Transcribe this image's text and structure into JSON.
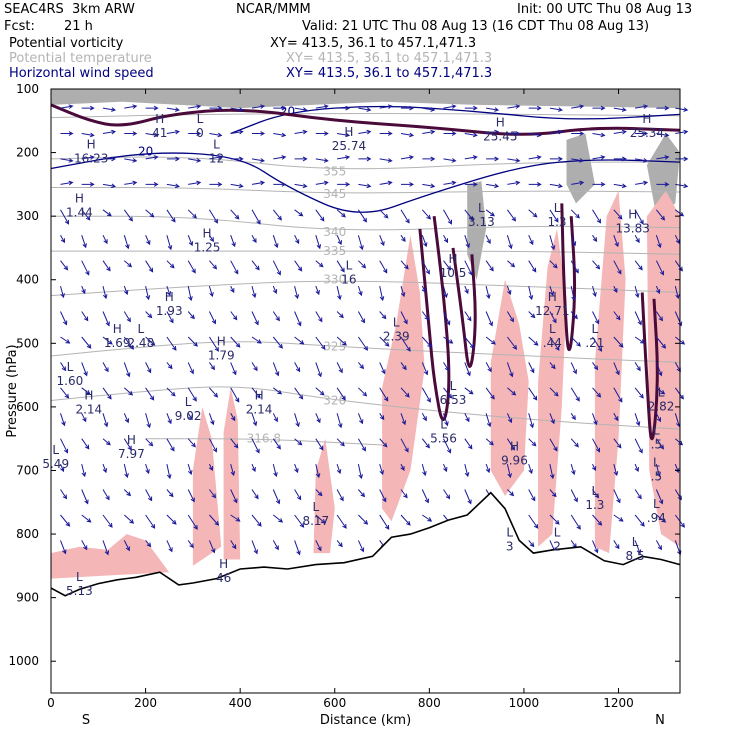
{
  "header": {
    "model": "SEAC4RS  3km ARW",
    "center": "NCAR/MMM",
    "init": "Init: 00 UTC Thu 08 Aug 13",
    "fcst_label": "Fcst:",
    "fcst_value": "21 h",
    "valid": "Valid: 21 UTC Thu 08 Aug 13 (16 CDT Thu 08 Aug 13)"
  },
  "fields": [
    {
      "name": "Potential vorticity",
      "xy": "XY= 413.5, 36.1 to 457.1,471.3",
      "color": "#000000"
    },
    {
      "name": "Potential temperature",
      "xy": "XY= 413.5, 36.1 to 457.1,471.3",
      "color": "#b4b4b4"
    },
    {
      "name": "Horizontal wind speed",
      "xy": "XY= 413.5, 36.1 to 457.1,471.3",
      "color": "#000080"
    }
  ],
  "chart_data": {
    "type": "cross-section",
    "xlabel": "Distance (km)",
    "ylabel": "Pressure (hPa)",
    "xlim": [
      0,
      1330
    ],
    "ylim": [
      1050,
      100
    ],
    "xticks": [
      0,
      200,
      400,
      600,
      800,
      1000,
      1200
    ],
    "yticks": [
      100,
      200,
      300,
      400,
      500,
      600,
      700,
      800,
      900,
      1000
    ],
    "left_end": "S",
    "right_end": "N",
    "terrain_pressure": [
      [
        0,
        885
      ],
      [
        30,
        897
      ],
      [
        60,
        887
      ],
      [
        100,
        878
      ],
      [
        140,
        872
      ],
      [
        180,
        868
      ],
      [
        230,
        860
      ],
      [
        270,
        880
      ],
      [
        300,
        877
      ],
      [
        350,
        870
      ],
      [
        400,
        855
      ],
      [
        450,
        852
      ],
      [
        500,
        855
      ],
      [
        560,
        848
      ],
      [
        620,
        845
      ],
      [
        680,
        835
      ],
      [
        720,
        805
      ],
      [
        760,
        800
      ],
      [
        800,
        790
      ],
      [
        840,
        778
      ],
      [
        880,
        770
      ],
      [
        930,
        735
      ],
      [
        960,
        760
      ],
      [
        990,
        810
      ],
      [
        1020,
        830
      ],
      [
        1060,
        825
      ],
      [
        1120,
        820
      ],
      [
        1170,
        842
      ],
      [
        1210,
        848
      ],
      [
        1250,
        835
      ],
      [
        1290,
        840
      ],
      [
        1330,
        848
      ]
    ],
    "theta_contours": [
      {
        "label": "",
        "p": [
          [
            0,
            145
          ],
          [
            300,
            140
          ],
          [
            700,
            138
          ],
          [
            1000,
            140
          ],
          [
            1330,
            142
          ]
        ]
      },
      {
        "label": "355",
        "p": [
          [
            0,
            210
          ],
          [
            300,
            205
          ],
          [
            600,
            230
          ],
          [
            1000,
            215
          ],
          [
            1330,
            215
          ]
        ]
      },
      {
        "label": "345",
        "p": [
          [
            0,
            255
          ],
          [
            300,
            255
          ],
          [
            600,
            265
          ],
          [
            1000,
            260
          ],
          [
            1330,
            262
          ]
        ]
      },
      {
        "label": "340",
        "p": [
          [
            0,
            300
          ],
          [
            300,
            300
          ],
          [
            600,
            325
          ],
          [
            1000,
            315
          ],
          [
            1330,
            318
          ]
        ]
      },
      {
        "label": "335",
        "p": [
          [
            0,
            355
          ],
          [
            300,
            355
          ],
          [
            600,
            355
          ],
          [
            1000,
            355
          ],
          [
            1330,
            360
          ]
        ]
      },
      {
        "label": "330",
        "p": [
          [
            0,
            425
          ],
          [
            300,
            410
          ],
          [
            600,
            400
          ],
          [
            1000,
            410
          ],
          [
            1330,
            420
          ]
        ]
      },
      {
        "label": "325",
        "p": [
          [
            0,
            520
          ],
          [
            200,
            505
          ],
          [
            400,
            495
          ],
          [
            600,
            505
          ],
          [
            1000,
            520
          ],
          [
            1330,
            530
          ]
        ]
      },
      {
        "label": "320",
        "p": [
          [
            0,
            590
          ],
          [
            200,
            575
          ],
          [
            400,
            565
          ],
          [
            600,
            590
          ],
          [
            1000,
            620
          ],
          [
            1330,
            635
          ]
        ]
      },
      {
        "label": "316.8",
        "p": [
          [
            200,
            650
          ],
          [
            450,
            650
          ],
          [
            700,
            660
          ]
        ]
      }
    ],
    "wind_speed_contours": [
      {
        "label": "20",
        "p": [
          [
            0,
            225
          ],
          [
            200,
            198
          ],
          [
            400,
            205
          ],
          [
            500,
            255
          ],
          [
            650,
            305
          ],
          [
            800,
            265
          ],
          [
            1000,
            220
          ],
          [
            1150,
            210
          ],
          [
            1330,
            215
          ]
        ]
      },
      {
        "label": "20",
        "p": [
          [
            380,
            170
          ],
          [
            500,
            135
          ],
          [
            700,
            125
          ],
          [
            900,
            135
          ],
          [
            1100,
            150
          ],
          [
            1330,
            140
          ]
        ]
      }
    ],
    "pv_contours": [
      {
        "label": "",
        "p": [
          [
            0,
            125
          ],
          [
            80,
            150
          ],
          [
            150,
            160
          ],
          [
            250,
            140
          ],
          [
            400,
            130
          ],
          [
            600,
            150
          ],
          [
            800,
            160
          ],
          [
            1000,
            175
          ],
          [
            1150,
            160
          ],
          [
            1330,
            165
          ]
        ]
      },
      {
        "label": "",
        "p": [
          [
            780,
            320
          ],
          [
            800,
            480
          ],
          [
            810,
            560
          ],
          [
            830,
            640
          ],
          [
            845,
            560
          ],
          [
            830,
            420
          ],
          [
            810,
            300
          ]
        ]
      },
      {
        "label": "",
        "p": [
          [
            850,
            350
          ],
          [
            870,
            460
          ],
          [
            885,
            560
          ],
          [
            900,
            470
          ],
          [
            890,
            360
          ]
        ]
      },
      {
        "label": "",
        "p": [
          [
            1080,
            280
          ],
          [
            1085,
            420
          ],
          [
            1095,
            540
          ],
          [
            1110,
            420
          ],
          [
            1100,
            300
          ]
        ]
      },
      {
        "label": "",
        "p": [
          [
            1250,
            420
          ],
          [
            1260,
            560
          ],
          [
            1270,
            680
          ],
          [
            1285,
            560
          ],
          [
            1275,
            430
          ]
        ]
      }
    ],
    "pink_regions": [
      [
        [
          0,
          830
        ],
        [
          60,
          820
        ],
        [
          120,
          825
        ],
        [
          160,
          800
        ],
        [
          200,
          810
        ],
        [
          250,
          860
        ],
        [
          0,
          870
        ]
      ],
      [
        [
          300,
          700
        ],
        [
          320,
          600
        ],
        [
          340,
          650
        ],
        [
          360,
          820
        ],
        [
          300,
          850
        ]
      ],
      [
        [
          365,
          640
        ],
        [
          380,
          570
        ],
        [
          395,
          620
        ],
        [
          400,
          840
        ],
        [
          365,
          840
        ]
      ],
      [
        [
          560,
          700
        ],
        [
          580,
          650
        ],
        [
          600,
          760
        ],
        [
          590,
          830
        ],
        [
          555,
          830
        ]
      ],
      [
        [
          700,
          570
        ],
        [
          730,
          470
        ],
        [
          760,
          330
        ],
        [
          780,
          420
        ],
        [
          790,
          540
        ],
        [
          760,
          700
        ],
        [
          720,
          780
        ],
        [
          700,
          760
        ]
      ],
      [
        [
          930,
          530
        ],
        [
          960,
          400
        ],
        [
          990,
          470
        ],
        [
          1010,
          560
        ],
        [
          1000,
          700
        ],
        [
          960,
          740
        ],
        [
          930,
          700
        ]
      ],
      [
        [
          1030,
          560
        ],
        [
          1050,
          380
        ],
        [
          1070,
          320
        ],
        [
          1090,
          430
        ],
        [
          1080,
          600
        ],
        [
          1060,
          800
        ],
        [
          1030,
          820
        ]
      ],
      [
        [
          1150,
          530
        ],
        [
          1175,
          300
        ],
        [
          1200,
          260
        ],
        [
          1215,
          400
        ],
        [
          1200,
          650
        ],
        [
          1180,
          830
        ],
        [
          1150,
          820
        ]
      ],
      [
        [
          1260,
          300
        ],
        [
          1300,
          260
        ],
        [
          1330,
          300
        ],
        [
          1330,
          820
        ],
        [
          1290,
          800
        ],
        [
          1265,
          700
        ]
      ]
    ],
    "shaded_regions": [
      [
        [
          0,
          100
        ],
        [
          1330,
          100
        ],
        [
          1330,
          130
        ],
        [
          900,
          125
        ],
        [
          700,
          120
        ],
        [
          400,
          130
        ],
        [
          150,
          120
        ],
        [
          0,
          125
        ]
      ],
      [
        [
          880,
          250
        ],
        [
          910,
          245
        ],
        [
          920,
          320
        ],
        [
          900,
          400
        ],
        [
          880,
          360
        ]
      ],
      [
        [
          1090,
          180
        ],
        [
          1130,
          170
        ],
        [
          1150,
          250
        ],
        [
          1110,
          280
        ],
        [
          1090,
          250
        ]
      ],
      [
        [
          1260,
          220
        ],
        [
          1300,
          170
        ],
        [
          1330,
          200
        ],
        [
          1320,
          280
        ],
        [
          1280,
          300
        ]
      ]
    ],
    "extrema": [
      {
        "type": "H",
        "value": "41",
        "x": 230,
        "p": 160
      },
      {
        "type": "L",
        "value": "0",
        "x": 315,
        "p": 160
      },
      {
        "type": "H",
        "value": "16.23",
        "x": 85,
        "p": 200
      },
      {
        "type": "H",
        "value": "1.44",
        "x": 60,
        "p": 285
      },
      {
        "type": "L",
        "value": "12",
        "x": 350,
        "p": 200
      },
      {
        "type": "H",
        "value": "25.74",
        "x": 630,
        "p": 180
      },
      {
        "type": "H",
        "value": "25.45",
        "x": 950,
        "p": 165
      },
      {
        "type": "H",
        "value": "25.34",
        "x": 1260,
        "p": 160
      },
      {
        "type": "H",
        "value": "1.25",
        "x": 330,
        "p": 340
      },
      {
        "type": "L",
        "value": "16",
        "x": 630,
        "p": 390
      },
      {
        "type": "H",
        "value": "1.93",
        "x": 250,
        "p": 440
      },
      {
        "type": "L",
        "value": "3.13",
        "x": 910,
        "p": 300
      },
      {
        "type": "L",
        "value": "1.3",
        "x": 1070,
        "p": 300
      },
      {
        "type": "H",
        "value": "13.83",
        "x": 1230,
        "p": 310
      },
      {
        "type": "H",
        "value": "10.5",
        "x": 850,
        "p": 380
      },
      {
        "type": "H",
        "value": "12.71",
        "x": 1060,
        "p": 440
      },
      {
        "type": "H",
        "value": "1.69",
        "x": 140,
        "p": 490
      },
      {
        "type": "L",
        "value": "2.48",
        "x": 190,
        "p": 490
      },
      {
        "type": "H",
        "value": "1.79",
        "x": 360,
        "p": 510
      },
      {
        "type": "L",
        "value": "2.39",
        "x": 730,
        "p": 480
      },
      {
        "type": "L",
        "value": ".44",
        "x": 1060,
        "p": 490
      },
      {
        "type": "L",
        "value": ".21",
        "x": 1150,
        "p": 490
      },
      {
        "type": "L",
        "value": "1.60",
        "x": 40,
        "p": 550
      },
      {
        "type": "H",
        "value": "2.14",
        "x": 80,
        "p": 595
      },
      {
        "type": "L",
        "value": "9.02",
        "x": 290,
        "p": 605
      },
      {
        "type": "H",
        "value": "2.14",
        "x": 440,
        "p": 595
      },
      {
        "type": "L",
        "value": "6.53",
        "x": 850,
        "p": 580
      },
      {
        "type": "L",
        "value": "2.82",
        "x": 1290,
        "p": 590
      },
      {
        "type": "H",
        "value": "7.97",
        "x": 170,
        "p": 665
      },
      {
        "type": "L",
        "value": "5.49",
        "x": 10,
        "p": 680
      },
      {
        "type": "L",
        "value": "5.56",
        "x": 830,
        "p": 640
      },
      {
        "type": "H",
        "value": "9.96",
        "x": 980,
        "p": 675
      },
      {
        "type": "L",
        "value": ".5",
        "x": 1280,
        "p": 650
      },
      {
        "type": "L",
        "value": ".5",
        "x": 1280,
        "p": 700
      },
      {
        "type": "L",
        "value": "1.3",
        "x": 1150,
        "p": 745
      },
      {
        "type": "L",
        "value": "8.17",
        "x": 560,
        "p": 770
      },
      {
        "type": "L",
        "value": ".94",
        "x": 1280,
        "p": 765
      },
      {
        "type": "H",
        "value": "46",
        "x": 365,
        "p": 860
      },
      {
        "type": "L",
        "value": "5.13",
        "x": 60,
        "p": 880
      },
      {
        "type": "L",
        "value": "8.5",
        "x": 1235,
        "p": 825
      },
      {
        "type": "L",
        "value": "3",
        "x": 970,
        "p": 810
      },
      {
        "type": "L",
        "value": "2",
        "x": 1070,
        "p": 810
      }
    ],
    "wind_vectors": {
      "x_columns": [
        20,
        65,
        110,
        155,
        200,
        245,
        290,
        335,
        380,
        425,
        470,
        515,
        560,
        605,
        650,
        695,
        740,
        785,
        830,
        875,
        920,
        965,
        1010,
        1055,
        1100,
        1145,
        1190,
        1235,
        1280,
        1320
      ],
      "p_levels": [
        130,
        170,
        210,
        250,
        290,
        330,
        370,
        410,
        450,
        490,
        530,
        570,
        610,
        650,
        690,
        730,
        770,
        810
      ]
    }
  }
}
